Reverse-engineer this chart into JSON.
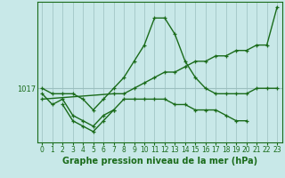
{
  "bg_color": "#c8e8e8",
  "line_color": "#1a6b1a",
  "grid_color": "#9bbfbf",
  "xlabel": "Graphe pression niveau de la mer (hPa)",
  "xlabel_fontsize": 7,
  "tick_fontsize": 5.5,
  "ylabel_fontsize": 6,
  "xlim": [
    -0.5,
    23.5
  ],
  "ylim": [
    1007,
    1033
  ],
  "ytick_pos": 1017,
  "series": [
    {
      "x": [
        0,
        1,
        2,
        3,
        4,
        5,
        6,
        7,
        8,
        9,
        10,
        11,
        12,
        13,
        14,
        15,
        16,
        17,
        18,
        19,
        20,
        21,
        22,
        23
      ],
      "y": [
        1017,
        1016,
        1016,
        1016,
        1015,
        1013,
        1015,
        1017,
        1019,
        1022,
        1025,
        1030,
        1030,
        1027,
        1022,
        1019,
        1017,
        1016,
        1016,
        1016,
        1016,
        1017,
        1017,
        1017
      ]
    },
    {
      "x": [
        0,
        7,
        8,
        9,
        10,
        11,
        12,
        13,
        14,
        15,
        16,
        17,
        18,
        19,
        20,
        21,
        22,
        23
      ],
      "y": [
        1015,
        1016,
        1016,
        1017,
        1018,
        1019,
        1020,
        1020,
        1021,
        1022,
        1022,
        1023,
        1023,
        1024,
        1024,
        1025,
        1025,
        1032
      ]
    },
    {
      "x": [
        0,
        1,
        2,
        3,
        4,
        5,
        6,
        7,
        8,
        9,
        10,
        11,
        12,
        13,
        14,
        15,
        16,
        17,
        18,
        19,
        20
      ],
      "y": [
        1016,
        1014,
        1015,
        1012,
        1011,
        1010,
        1012,
        1013,
        1015,
        1015,
        1015,
        1015,
        1015,
        1014,
        1014,
        1013,
        1013,
        1013,
        1012,
        1011,
        1011
      ]
    },
    {
      "x": [
        2,
        3,
        4,
        5,
        6,
        7
      ],
      "y": [
        1014,
        1011,
        1010,
        1009,
        1011,
        1013
      ]
    }
  ]
}
